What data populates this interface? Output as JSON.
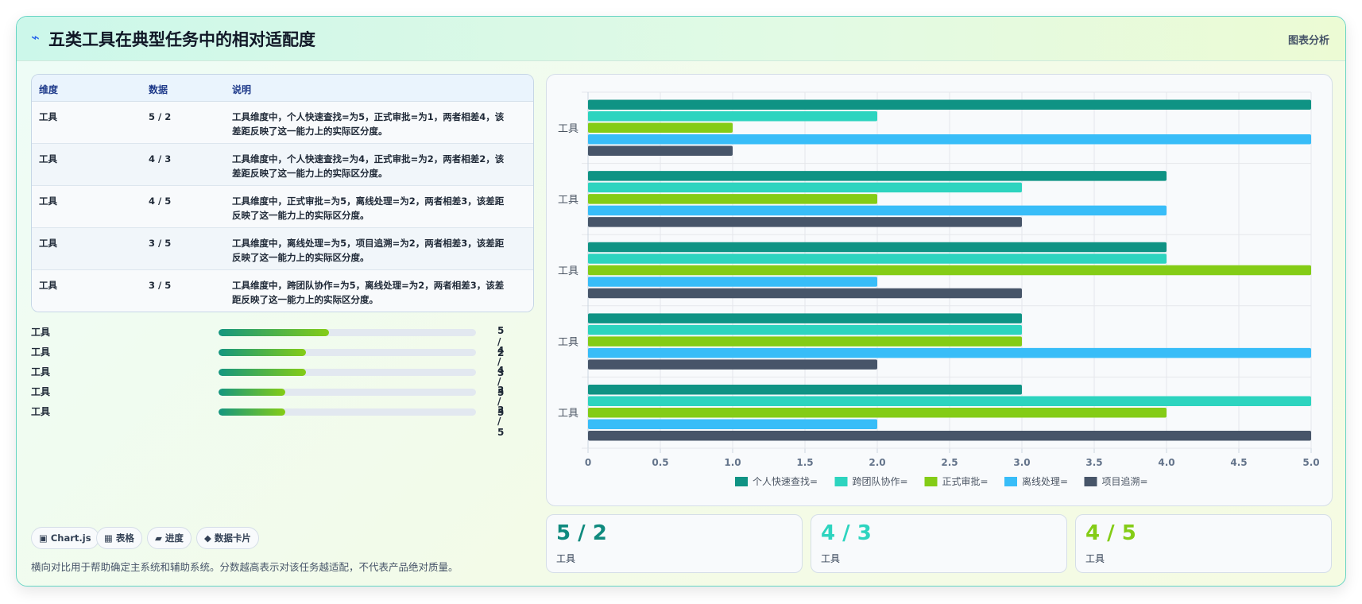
{
  "header": {
    "title": "五类工具在典型任务中的相对适配度",
    "bolt": "⌁",
    "right_label": "图表分析"
  },
  "table": {
    "headers": [
      "维度",
      "数据",
      "说明"
    ],
    "rows": [
      {
        "dim": "工具",
        "data": "5 / 2",
        "desc": "工具维度中，个人快速查找=为5，正式审批=为1，两者相差4，该差距反映了这一能力上的实际区分度。"
      },
      {
        "dim": "工具",
        "data": "4 / 3",
        "desc": "工具维度中，个人快速查找=为4，正式审批=为2，两者相差2，该差距反映了这一能力上的实际区分度。"
      },
      {
        "dim": "工具",
        "data": "4 / 5",
        "desc": "工具维度中，正式审批=为5，离线处理=为2，两者相差3，该差距反映了这一能力上的实际区分度。"
      },
      {
        "dim": "工具",
        "data": "3 / 5",
        "desc": "工具维度中，离线处理=为5，项目追溯=为2，两者相差3，该差距反映了这一能力上的实际区分度。"
      },
      {
        "dim": "工具",
        "data": "3 / 5",
        "desc": "工具维度中，跨团队协作=为5，离线处理=为2，两者相差3，该差距反映了这一能力上的实际区分度。"
      }
    ]
  },
  "progress": [
    {
      "label": "工具",
      "value": "5 / 2",
      "fraction": 0.43
    },
    {
      "label": "工具",
      "value": "4 / 3",
      "fraction": 0.34
    },
    {
      "label": "工具",
      "value": "4 / 5",
      "fraction": 0.34
    },
    {
      "label": "工具",
      "value": "3 / 5",
      "fraction": 0.26
    },
    {
      "label": "工具",
      "value": "3 / 5",
      "fraction": 0.26
    }
  ],
  "chips": [
    "▣ Chart.js",
    "▦ 表格",
    "▰ 进度",
    "◆ 数据卡片"
  ],
  "footnote": "横向对比用于帮助确定主系统和辅助系统。分数越高表示对该任务越适配，不代表产品绝对质量。",
  "stats": [
    {
      "value": "5 / 2",
      "label": "工具",
      "color": "#0f8a7e"
    },
    {
      "value": "4 / 3",
      "label": "工具",
      "color": "#2dd4bf"
    },
    {
      "value": "4 / 5",
      "label": "工具",
      "color": "#84cc16"
    }
  ],
  "chart_data": {
    "type": "bar",
    "orientation": "horizontal",
    "categories": [
      "工具",
      "工具",
      "工具",
      "工具",
      "工具"
    ],
    "series": [
      {
        "name": "个人快速查找=",
        "color": "#0f9384",
        "values": [
          5,
          4,
          4,
          3,
          3
        ]
      },
      {
        "name": "跨团队协作=",
        "color": "#2dd4bf",
        "values": [
          2,
          3,
          4,
          3,
          5
        ]
      },
      {
        "name": "正式审批=",
        "color": "#84cc16",
        "values": [
          1,
          2,
          5,
          3,
          4
        ]
      },
      {
        "name": "离线处理=",
        "color": "#38bdf8",
        "values": [
          5,
          4,
          2,
          5,
          2
        ]
      },
      {
        "name": "项目追溯=",
        "color": "#475569",
        "values": [
          1,
          3,
          3,
          2,
          5
        ]
      }
    ],
    "xlim": [
      0,
      5
    ],
    "xticks": [
      "0",
      "0.5",
      "1.0",
      "1.5",
      "2.0",
      "2.5",
      "3.0",
      "3.5",
      "4.0",
      "4.5",
      "5.0"
    ],
    "xlabel": "",
    "ylabel": "",
    "grid": true,
    "legend_position": "bottom"
  }
}
